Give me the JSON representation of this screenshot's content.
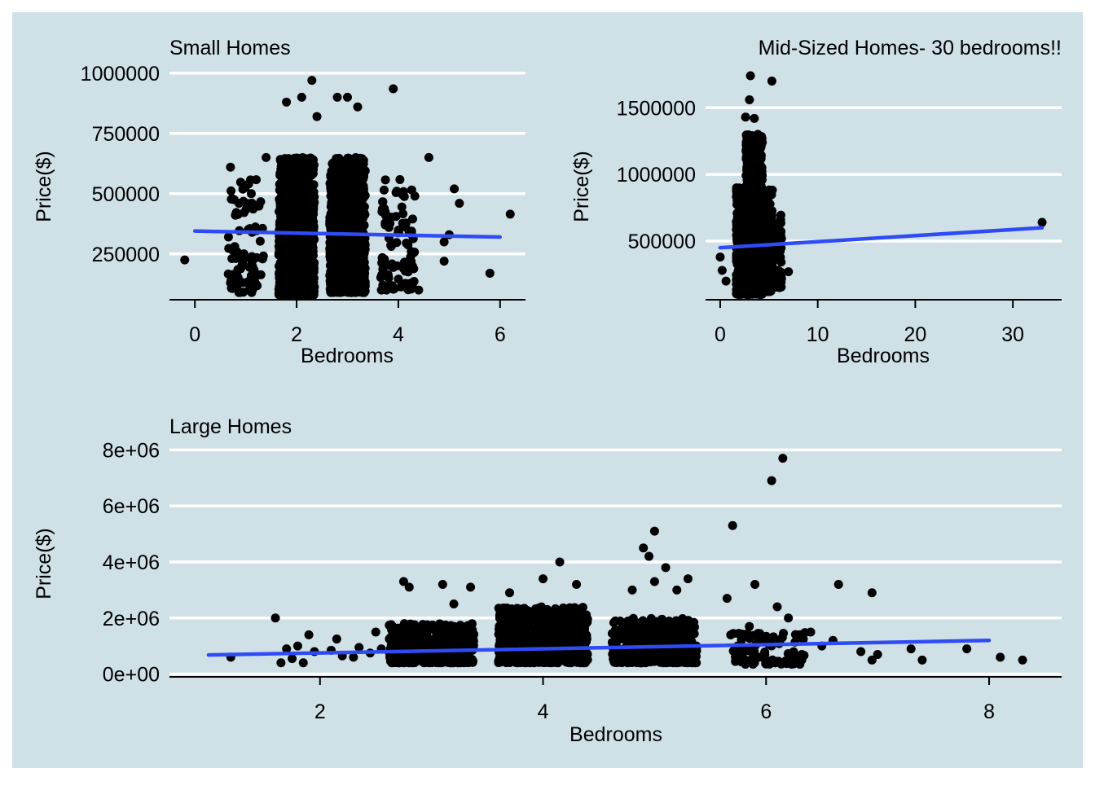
{
  "figure": {
    "background": "#cfe0e7",
    "grid_color": "#ffffff",
    "point_color": "#000000",
    "trend_color": "#2e4bf5"
  },
  "chart_data": [
    {
      "type": "scatter",
      "title": "Small Homes",
      "xlabel": "Bedrooms",
      "ylabel": "Price($)",
      "xlim": [
        -0.5,
        6.5
      ],
      "ylim": [
        60000,
        1050000
      ],
      "x_ticks": [
        0,
        2,
        4,
        6
      ],
      "y_ticks": [
        250000,
        500000,
        750000,
        1000000
      ],
      "y_tick_labels": [
        "250000",
        "500000",
        "750000",
        "1000000"
      ],
      "grid": "horizontal",
      "trend_line": {
        "x": [
          0,
          6
        ],
        "y": [
          345000,
          320000
        ]
      },
      "clusters": [
        {
          "x": 1,
          "spread": 0.35,
          "ymin": 90000,
          "ymax": 560000,
          "n": 90
        },
        {
          "x": 2,
          "spread": 0.35,
          "ymin": 80000,
          "ymax": 650000,
          "n": 1100
        },
        {
          "x": 3,
          "spread": 0.35,
          "ymin": 90000,
          "ymax": 650000,
          "n": 1100
        },
        {
          "x": 4,
          "spread": 0.35,
          "ymin": 100000,
          "ymax": 560000,
          "n": 90
        }
      ],
      "points": [
        {
          "x": -0.2,
          "y": 225000
        },
        {
          "x": 2.3,
          "y": 970000
        },
        {
          "x": 3.9,
          "y": 935000
        },
        {
          "x": 2.1,
          "y": 900000
        },
        {
          "x": 2.8,
          "y": 900000
        },
        {
          "x": 3.0,
          "y": 900000
        },
        {
          "x": 3.2,
          "y": 860000
        },
        {
          "x": 1.8,
          "y": 880000
        },
        {
          "x": 2.4,
          "y": 820000
        },
        {
          "x": 0.7,
          "y": 610000
        },
        {
          "x": 1.4,
          "y": 650000
        },
        {
          "x": 4.6,
          "y": 650000
        },
        {
          "x": 5.1,
          "y": 520000
        },
        {
          "x": 5.2,
          "y": 460000
        },
        {
          "x": 5.0,
          "y": 330000
        },
        {
          "x": 4.9,
          "y": 300000
        },
        {
          "x": 4.9,
          "y": 220000
        },
        {
          "x": 5.8,
          "y": 170000
        },
        {
          "x": 6.2,
          "y": 415000
        },
        {
          "x": 4.4,
          "y": 100000
        },
        {
          "x": 0.7,
          "y": 130000
        }
      ]
    },
    {
      "type": "scatter",
      "title": "Mid-Sized Homes- 30 bedrooms!!",
      "xlabel": "Bedrooms",
      "ylabel": "Price($)",
      "xlim": [
        -1.5,
        35
      ],
      "ylim": [
        60000,
        1850000
      ],
      "x_ticks": [
        0,
        10,
        20,
        30
      ],
      "y_ticks": [
        500000,
        1000000,
        1500000
      ],
      "y_tick_labels": [
        "500000",
        "1000000",
        "1500000"
      ],
      "grid": "horizontal",
      "trend_line": {
        "x": [
          0,
          33
        ],
        "y": [
          450000,
          600000
        ]
      },
      "clusters": [
        {
          "x": 2,
          "spread": 0.35,
          "ymin": 100000,
          "ymax": 900000,
          "n": 250
        },
        {
          "x": 3,
          "spread": 0.35,
          "ymin": 100000,
          "ymax": 1300000,
          "n": 500
        },
        {
          "x": 4,
          "spread": 0.35,
          "ymin": 100000,
          "ymax": 1300000,
          "n": 500
        },
        {
          "x": 5,
          "spread": 0.35,
          "ymin": 120000,
          "ymax": 900000,
          "n": 200
        },
        {
          "x": 6,
          "spread": 0.3,
          "ymin": 150000,
          "ymax": 700000,
          "n": 50
        }
      ],
      "points": [
        {
          "x": 3.1,
          "y": 1740000
        },
        {
          "x": 5.3,
          "y": 1700000
        },
        {
          "x": 3.0,
          "y": 1560000
        },
        {
          "x": 2.6,
          "y": 1430000
        },
        {
          "x": 3.5,
          "y": 1420000
        },
        {
          "x": 0.0,
          "y": 380000
        },
        {
          "x": 0.2,
          "y": 280000
        },
        {
          "x": 0.6,
          "y": 200000
        },
        {
          "x": 7.0,
          "y": 270000
        },
        {
          "x": 33.0,
          "y": 640000
        }
      ]
    },
    {
      "type": "scatter",
      "title": "Large Homes",
      "xlabel": "Bedrooms",
      "ylabel": "Price($)",
      "xlim": [
        0.65,
        8.65
      ],
      "ylim": [
        -100000,
        8300000
      ],
      "x_ticks": [
        2,
        4,
        6,
        8
      ],
      "y_ticks": [
        0,
        2000000,
        4000000,
        6000000,
        8000000
      ],
      "y_tick_labels": [
        "0e+00",
        "2e+06",
        "4e+06",
        "6e+06",
        "8e+06"
      ],
      "grid": "horizontal",
      "trend_line": {
        "x": [
          1,
          8
        ],
        "y": [
          680000,
          1200000
        ]
      },
      "clusters": [
        {
          "x": 3,
          "spread": 0.38,
          "ymin": 400000,
          "ymax": 1800000,
          "n": 400
        },
        {
          "x": 4,
          "spread": 0.4,
          "ymin": 400000,
          "ymax": 2400000,
          "n": 700
        },
        {
          "x": 5,
          "spread": 0.38,
          "ymin": 400000,
          "ymax": 2000000,
          "n": 400
        },
        {
          "x": 6,
          "spread": 0.35,
          "ymin": 350000,
          "ymax": 1500000,
          "n": 90
        }
      ],
      "points": [
        {
          "x": 1.2,
          "y": 600000
        },
        {
          "x": 1.6,
          "y": 2000000
        },
        {
          "x": 1.65,
          "y": 400000
        },
        {
          "x": 1.7,
          "y": 900000
        },
        {
          "x": 1.75,
          "y": 550000
        },
        {
          "x": 1.8,
          "y": 1000000
        },
        {
          "x": 1.85,
          "y": 400000
        },
        {
          "x": 1.9,
          "y": 1400000
        },
        {
          "x": 1.95,
          "y": 800000
        },
        {
          "x": 2.1,
          "y": 850000
        },
        {
          "x": 2.15,
          "y": 1250000
        },
        {
          "x": 2.2,
          "y": 650000
        },
        {
          "x": 2.3,
          "y": 600000
        },
        {
          "x": 2.35,
          "y": 950000
        },
        {
          "x": 2.45,
          "y": 750000
        },
        {
          "x": 2.5,
          "y": 1500000
        },
        {
          "x": 2.55,
          "y": 900000
        },
        {
          "x": 2.75,
          "y": 3300000
        },
        {
          "x": 2.8,
          "y": 3100000
        },
        {
          "x": 3.1,
          "y": 3200000
        },
        {
          "x": 3.35,
          "y": 3100000
        },
        {
          "x": 3.2,
          "y": 2500000
        },
        {
          "x": 4.15,
          "y": 4000000
        },
        {
          "x": 4.0,
          "y": 3400000
        },
        {
          "x": 3.7,
          "y": 2900000
        },
        {
          "x": 4.3,
          "y": 3200000
        },
        {
          "x": 4.9,
          "y": 4500000
        },
        {
          "x": 4.95,
          "y": 4200000
        },
        {
          "x": 5.0,
          "y": 5100000
        },
        {
          "x": 5.1,
          "y": 3800000
        },
        {
          "x": 5.0,
          "y": 3300000
        },
        {
          "x": 5.2,
          "y": 3000000
        },
        {
          "x": 5.3,
          "y": 3400000
        },
        {
          "x": 4.8,
          "y": 3000000
        },
        {
          "x": 6.05,
          "y": 6900000
        },
        {
          "x": 6.15,
          "y": 7700000
        },
        {
          "x": 5.7,
          "y": 5300000
        },
        {
          "x": 5.9,
          "y": 3200000
        },
        {
          "x": 5.65,
          "y": 2700000
        },
        {
          "x": 6.1,
          "y": 2400000
        },
        {
          "x": 6.2,
          "y": 2000000
        },
        {
          "x": 5.85,
          "y": 1700000
        },
        {
          "x": 6.65,
          "y": 3200000
        },
        {
          "x": 6.95,
          "y": 2900000
        },
        {
          "x": 6.3,
          "y": 1400000
        },
        {
          "x": 6.4,
          "y": 1500000
        },
        {
          "x": 6.5,
          "y": 1000000
        },
        {
          "x": 6.6,
          "y": 1200000
        },
        {
          "x": 6.85,
          "y": 800000
        },
        {
          "x": 6.95,
          "y": 500000
        },
        {
          "x": 7.0,
          "y": 700000
        },
        {
          "x": 7.3,
          "y": 900000
        },
        {
          "x": 7.4,
          "y": 500000
        },
        {
          "x": 7.8,
          "y": 900000
        },
        {
          "x": 8.1,
          "y": 600000
        },
        {
          "x": 8.3,
          "y": 500000
        }
      ]
    }
  ]
}
